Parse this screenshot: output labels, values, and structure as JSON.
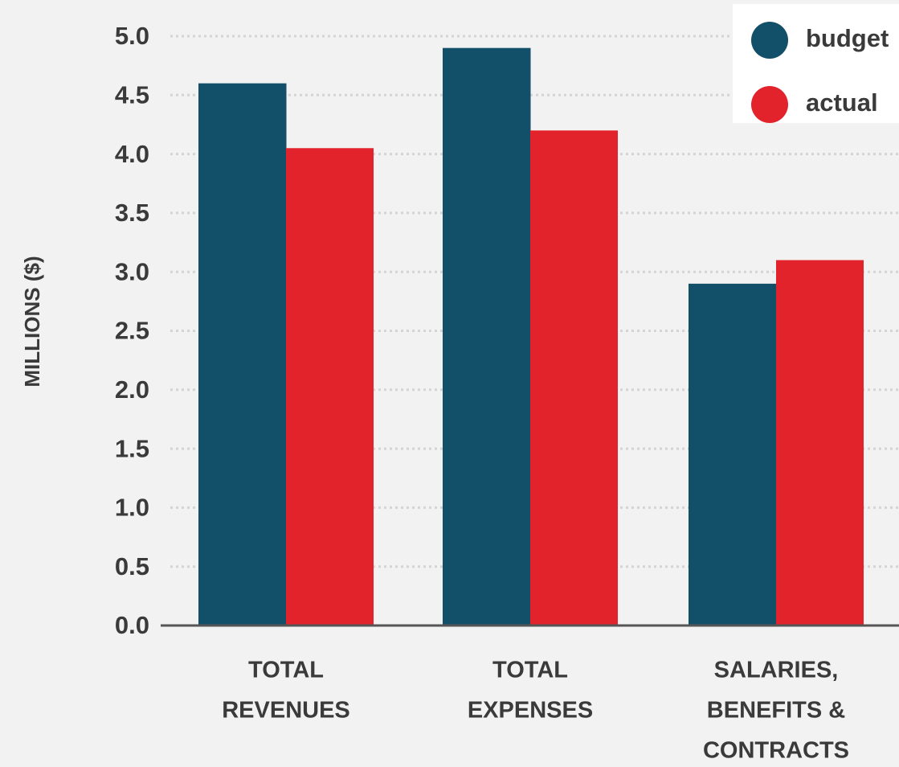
{
  "chart_data": {
    "type": "bar",
    "y_label": "MILLIONS ($)",
    "categories": [
      [
        "TOTAL",
        "REVENUES"
      ],
      [
        "TOTAL",
        "EXPENSES"
      ],
      [
        "SALARIES,",
        "BENEFITS &",
        "CONTRACTS"
      ]
    ],
    "series": [
      {
        "name": "budget",
        "color": "#124f69",
        "values": [
          4.6,
          4.9,
          2.9
        ]
      },
      {
        "name": "actual",
        "color": "#e2232b",
        "values": [
          4.05,
          4.2,
          3.1
        ]
      }
    ],
    "ylim": [
      0,
      5
    ],
    "yticks": [
      {
        "value": 0,
        "label": "0.0"
      },
      {
        "value": 0.5,
        "label": "0.5"
      },
      {
        "value": 1,
        "label": "1.0"
      },
      {
        "value": 1.5,
        "label": "1.5"
      },
      {
        "value": 2,
        "label": "2.0"
      },
      {
        "value": 2.5,
        "label": "2.5"
      },
      {
        "value": 3,
        "label": "3.0"
      },
      {
        "value": 3.5,
        "label": "3.5"
      },
      {
        "value": 4,
        "label": "4.0"
      },
      {
        "value": 4.5,
        "label": "4.5"
      },
      {
        "value": 5,
        "label": "5.0"
      }
    ],
    "grid": true,
    "legend": "top-right"
  }
}
